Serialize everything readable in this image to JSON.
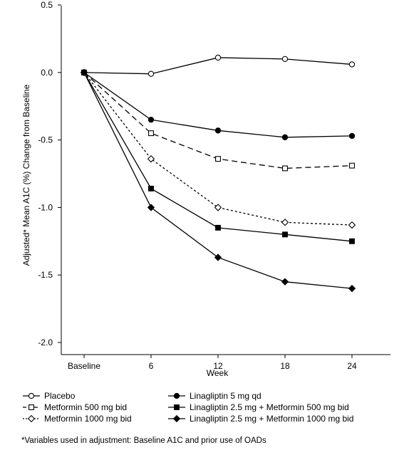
{
  "chart_data": {
    "type": "line",
    "title": "",
    "xlabel": "Week",
    "ylabel": "Adjusted* Mean A1C (%) Change from Baseline",
    "categories": [
      "Baseline",
      "6",
      "12",
      "18",
      "24"
    ],
    "x": [
      0,
      6,
      12,
      18,
      24
    ],
    "ylim": [
      -2.0,
      0.5
    ],
    "yticks": [
      "0.5",
      "0.0",
      "-0.5",
      "-1.0",
      "-1.5",
      "-2.0"
    ],
    "ytick_values": [
      0.5,
      0.0,
      -0.5,
      -1.0,
      -1.5,
      -2.0
    ],
    "grid": false,
    "legend_position": "bottom",
    "series": [
      {
        "name": "Placebo",
        "line": "solid",
        "marker": "open-circle",
        "values": [
          0.0,
          -0.01,
          0.11,
          0.1,
          0.06
        ]
      },
      {
        "name": "Metformin 500 mg bid",
        "line": "dashed",
        "marker": "open-square",
        "values": [
          0.0,
          -0.45,
          -0.64,
          -0.71,
          -0.69
        ]
      },
      {
        "name": "Metformin 1000 mg bid",
        "line": "dotted",
        "marker": "open-diamond",
        "values": [
          0.0,
          -0.64,
          -1.0,
          -1.11,
          -1.13
        ]
      },
      {
        "name": "Linagliptin 5 mg qd",
        "line": "solid",
        "marker": "filled-circle",
        "values": [
          0.0,
          -0.35,
          -0.43,
          -0.48,
          -0.47
        ]
      },
      {
        "name": "Linagliptin 2.5 mg + Metformin 500 mg bid",
        "line": "solid",
        "marker": "filled-square",
        "values": [
          0.0,
          -0.86,
          -1.15,
          -1.2,
          -1.25
        ]
      },
      {
        "name": "Linagliptin 2.5 mg + Metformin 1000 mg bid",
        "line": "solid",
        "marker": "filled-diamond",
        "values": [
          0.0,
          -1.0,
          -1.37,
          -1.55,
          -1.6
        ]
      }
    ],
    "footnote": "*Variables used in adjustment: Baseline A1C and prior use of OADs"
  }
}
